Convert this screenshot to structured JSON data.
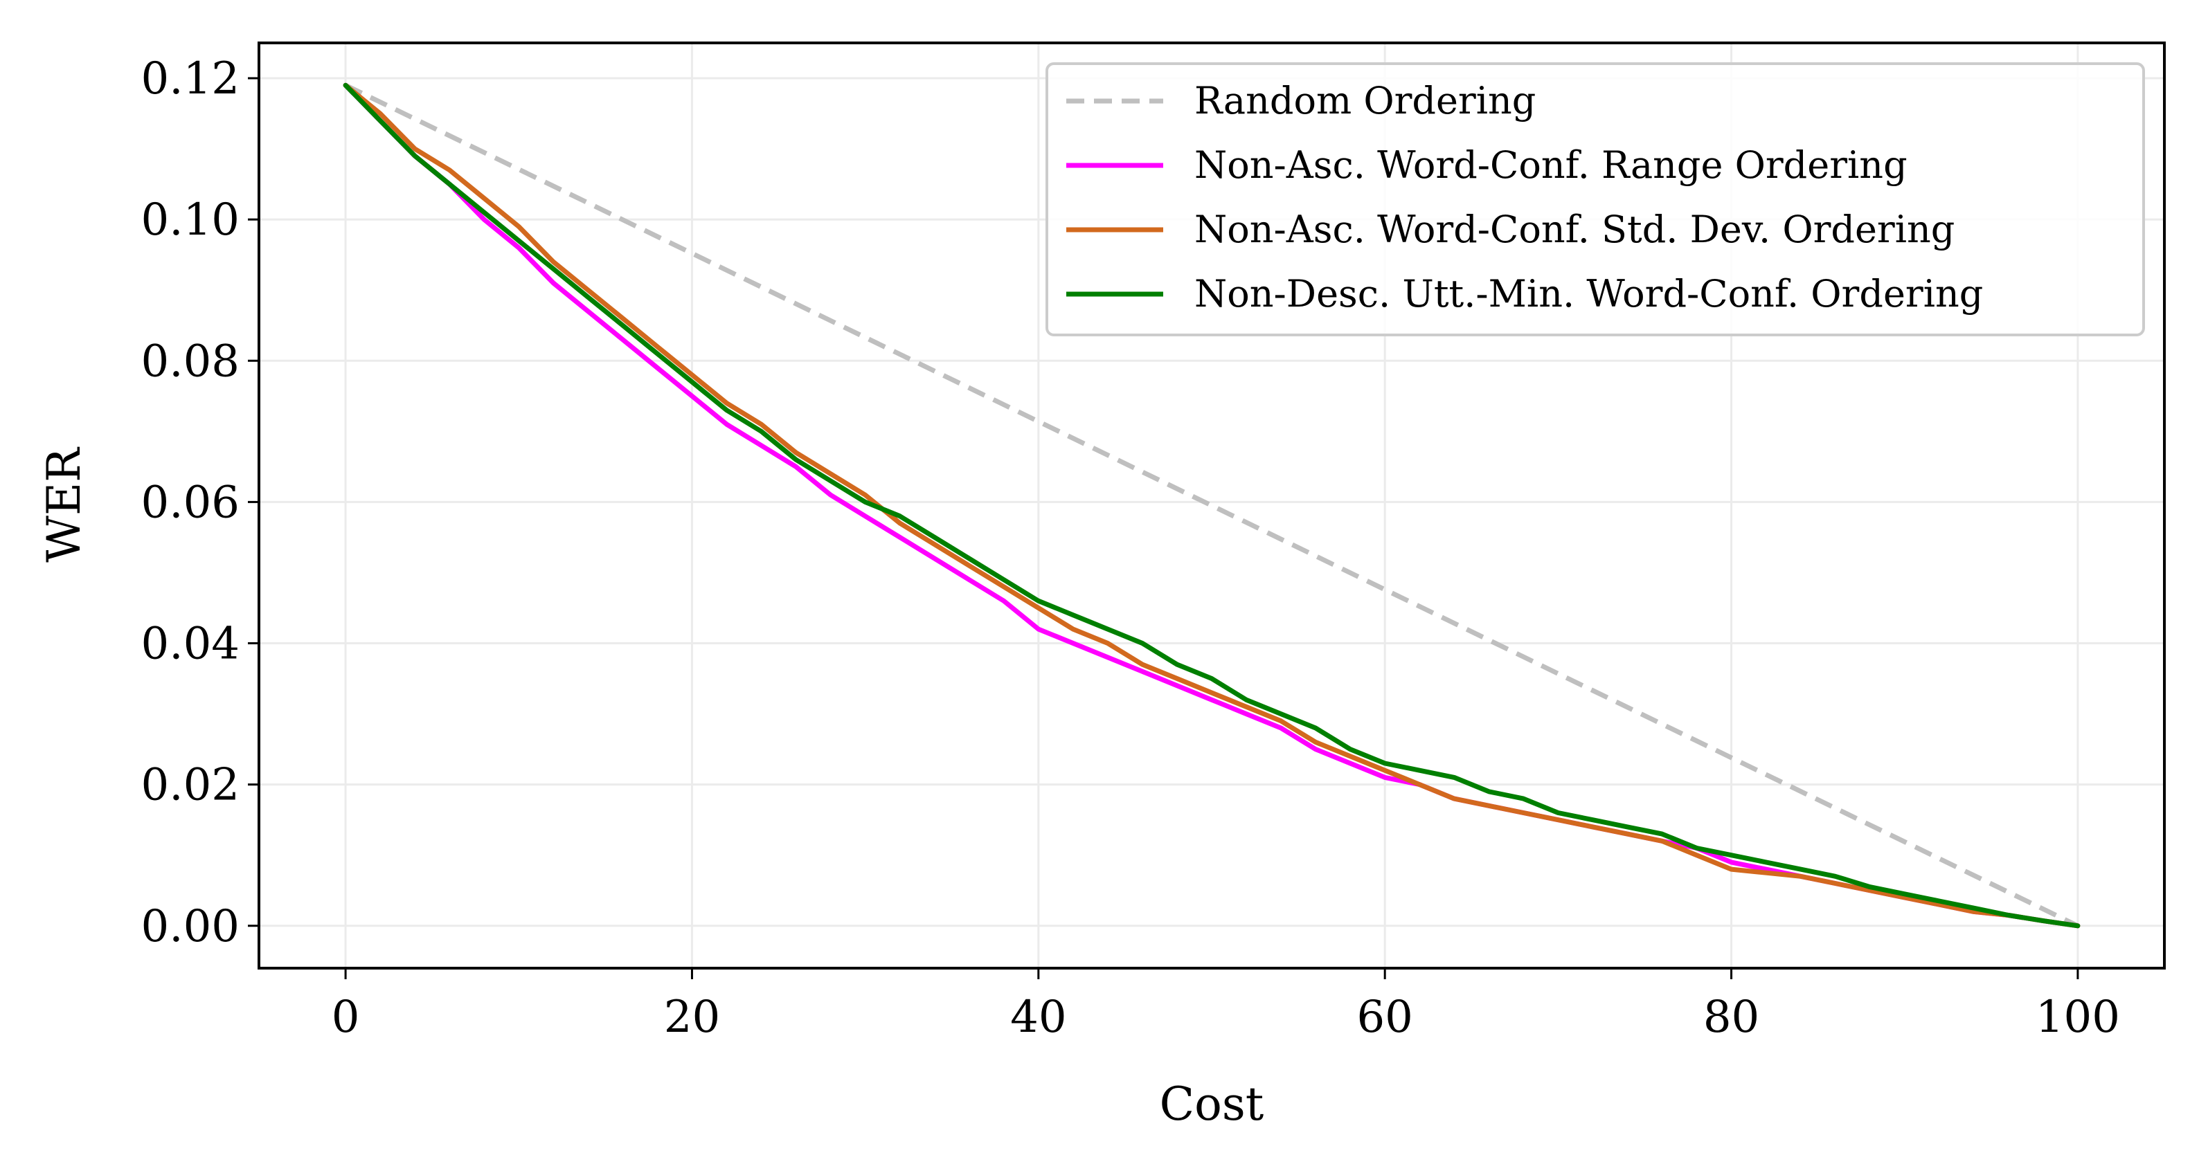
{
  "chart_data": {
    "type": "line",
    "title": "",
    "xlabel": "Cost",
    "ylabel": "WER",
    "xlim": [
      -5,
      105
    ],
    "ylim": [
      -0.006,
      0.125
    ],
    "xticks": [
      0,
      20,
      40,
      60,
      80,
      100
    ],
    "xtick_labels": [
      "0",
      "20",
      "40",
      "60",
      "80",
      "100"
    ],
    "yticks": [
      0.0,
      0.02,
      0.04,
      0.06,
      0.08,
      0.1,
      0.12
    ],
    "ytick_labels": [
      "0.00",
      "0.02",
      "0.04",
      "0.06",
      "0.08",
      "0.10",
      "0.12"
    ],
    "grid": true,
    "legend_position": "top-right",
    "series": [
      {
        "name": "Random Ordering",
        "color": "#bfbfbf",
        "dash": true,
        "x": [
          0,
          100
        ],
        "y": [
          0.119,
          0.0
        ]
      },
      {
        "name": "Non-Asc. Word-Conf. Range Ordering",
        "color": "#ff00ff",
        "dash": false,
        "x": [
          0,
          2,
          4,
          6,
          8,
          10,
          12,
          14,
          16,
          18,
          20,
          22,
          24,
          26,
          28,
          30,
          32,
          34,
          36,
          38,
          40,
          42,
          44,
          46,
          48,
          50,
          52,
          54,
          56,
          58,
          60,
          62,
          64,
          66,
          68,
          70,
          72,
          74,
          76,
          78,
          80,
          82,
          84,
          86,
          88,
          90,
          92,
          94,
          96,
          98,
          100
        ],
        "y": [
          0.119,
          0.114,
          0.109,
          0.105,
          0.1,
          0.096,
          0.091,
          0.087,
          0.083,
          0.079,
          0.075,
          0.071,
          0.068,
          0.065,
          0.061,
          0.058,
          0.055,
          0.052,
          0.049,
          0.046,
          0.042,
          0.04,
          0.038,
          0.036,
          0.034,
          0.032,
          0.03,
          0.028,
          0.025,
          0.023,
          0.021,
          0.02,
          0.018,
          0.017,
          0.016,
          0.015,
          0.014,
          0.013,
          0.012,
          0.011,
          0.009,
          0.008,
          0.007,
          0.006,
          0.005,
          0.004,
          0.003,
          0.002,
          0.0015,
          0.0007,
          0.0
        ]
      },
      {
        "name": "Non-Asc. Word-Conf. Std. Dev. Ordering",
        "color": "#d2691e",
        "dash": false,
        "x": [
          0,
          2,
          4,
          6,
          8,
          10,
          12,
          14,
          16,
          18,
          20,
          22,
          24,
          26,
          28,
          30,
          32,
          34,
          36,
          38,
          40,
          42,
          44,
          46,
          48,
          50,
          52,
          54,
          56,
          58,
          60,
          62,
          64,
          66,
          68,
          70,
          72,
          74,
          76,
          78,
          80,
          82,
          84,
          86,
          88,
          90,
          92,
          94,
          96,
          98,
          100
        ],
        "y": [
          0.119,
          0.115,
          0.11,
          0.107,
          0.103,
          0.099,
          0.094,
          0.09,
          0.086,
          0.082,
          0.078,
          0.074,
          0.071,
          0.067,
          0.064,
          0.061,
          0.057,
          0.054,
          0.051,
          0.048,
          0.045,
          0.042,
          0.04,
          0.037,
          0.035,
          0.033,
          0.031,
          0.029,
          0.026,
          0.024,
          0.022,
          0.02,
          0.018,
          0.017,
          0.016,
          0.015,
          0.014,
          0.013,
          0.012,
          0.01,
          0.008,
          0.0075,
          0.007,
          0.006,
          0.005,
          0.004,
          0.003,
          0.002,
          0.0015,
          0.0007,
          0.0
        ]
      },
      {
        "name": "Non-Desc. Utt.-Min. Word-Conf. Ordering",
        "color": "#007f00",
        "dash": false,
        "x": [
          0,
          2,
          4,
          6,
          8,
          10,
          12,
          14,
          16,
          18,
          20,
          22,
          24,
          26,
          28,
          30,
          32,
          34,
          36,
          38,
          40,
          42,
          44,
          46,
          48,
          50,
          52,
          54,
          56,
          58,
          60,
          62,
          64,
          66,
          68,
          70,
          72,
          74,
          76,
          78,
          80,
          82,
          84,
          86,
          88,
          90,
          92,
          94,
          96,
          98,
          100
        ],
        "y": [
          0.119,
          0.114,
          0.109,
          0.105,
          0.101,
          0.097,
          0.093,
          0.089,
          0.085,
          0.081,
          0.077,
          0.073,
          0.07,
          0.066,
          0.063,
          0.06,
          0.058,
          0.055,
          0.052,
          0.049,
          0.046,
          0.044,
          0.042,
          0.04,
          0.037,
          0.035,
          0.032,
          0.03,
          0.028,
          0.025,
          0.023,
          0.022,
          0.021,
          0.019,
          0.018,
          0.016,
          0.015,
          0.014,
          0.013,
          0.011,
          0.01,
          0.009,
          0.008,
          0.007,
          0.0055,
          0.0045,
          0.0035,
          0.0025,
          0.0015,
          0.0007,
          0.0
        ]
      }
    ]
  }
}
